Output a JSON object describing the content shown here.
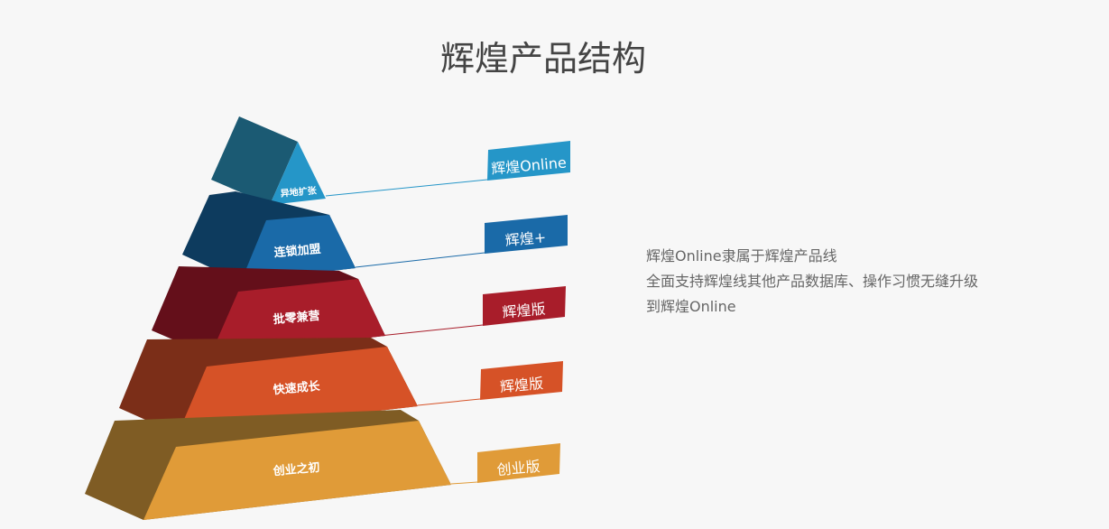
{
  "title": "辉煌产品结构",
  "layers": [
    {
      "label": "异地扩张",
      "tag": "辉煌Online",
      "dark": "#1b5a73",
      "light": "#2596c8"
    },
    {
      "label": "连锁加盟",
      "tag": "辉煌+",
      "dark": "#0d3b5e",
      "light": "#1a6aa8"
    },
    {
      "label": "批零兼营",
      "tag": "辉煌版",
      "dark": "#640f1a",
      "light": "#a81d2a"
    },
    {
      "label": "快速成长",
      "tag": "辉煌版",
      "dark": "#7b2e18",
      "light": "#d65227"
    },
    {
      "label": "创业之初",
      "tag": "创业版",
      "dark": "#7f5c24",
      "light": "#e09b38"
    }
  ],
  "description": [
    "辉煌Online隶属于辉煌产品线",
    "全面支持辉煌线其他产品数据库、操作习惯无缝升级",
    "到辉煌Online"
  ]
}
